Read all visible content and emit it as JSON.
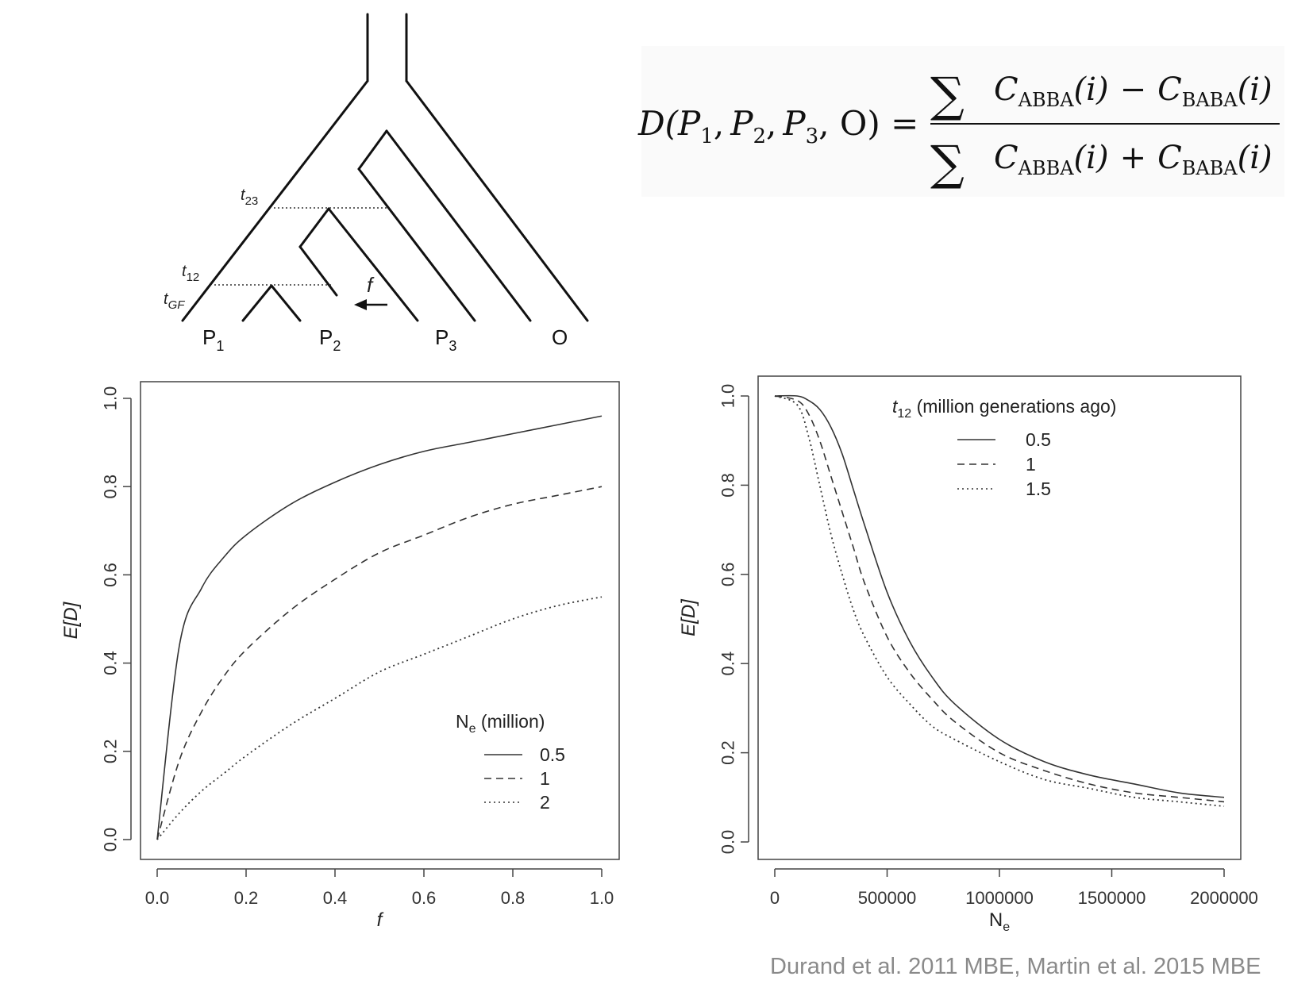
{
  "tree": {
    "tips": [
      "P",
      "P",
      "P",
      "O"
    ],
    "tip_subscripts": [
      "1",
      "2",
      "3",
      ""
    ],
    "times": {
      "t23": "t",
      "t23_sub": "23",
      "t12": "t",
      "t12_sub": "12",
      "tgf": "t",
      "tgf_sub": "GF"
    },
    "flow_label": "f"
  },
  "formula": {
    "lhs": "D(P",
    "lhs_rest": [
      ",",
      "P",
      ",",
      "P",
      ", O) ="
    ],
    "subs": [
      "1",
      "2",
      "3"
    ],
    "sigma": "∑",
    "C": "C",
    "abba": "ABBA",
    "baba": "BABA",
    "arg": "(i)",
    "minus": "−",
    "plus": "+"
  },
  "citation": "Durand et al. 2011 MBE, Martin et al. 2015 MBE",
  "chart_data": [
    {
      "type": "line",
      "xlabel": "f",
      "ylabel": "E[D]",
      "xlim": [
        0,
        1
      ],
      "ylim": [
        0,
        1
      ],
      "xticks": [
        "0.0",
        "0.2",
        "0.4",
        "0.6",
        "0.8",
        "1.0"
      ],
      "yticks": [
        "0.0",
        "0.2",
        "0.4",
        "0.6",
        "0.8",
        "1.0"
      ],
      "legend_title": "N",
      "legend_title_sub": "e",
      "legend_title_rest": " (million)",
      "legend_position": "bottom-right",
      "x": [
        0,
        0.05,
        0.1,
        0.15,
        0.2,
        0.3,
        0.4,
        0.5,
        0.6,
        0.7,
        0.8,
        0.9,
        1.0
      ],
      "series": [
        {
          "name": "0.5",
          "style": "solid",
          "values": [
            0,
            0.44,
            0.57,
            0.64,
            0.69,
            0.76,
            0.81,
            0.85,
            0.88,
            0.9,
            0.92,
            0.94,
            0.96
          ]
        },
        {
          "name": "1",
          "style": "dashed",
          "values": [
            0,
            0.18,
            0.29,
            0.37,
            0.43,
            0.52,
            0.59,
            0.65,
            0.69,
            0.73,
            0.76,
            0.78,
            0.8
          ]
        },
        {
          "name": "2",
          "style": "dotted",
          "values": [
            0,
            0.06,
            0.11,
            0.15,
            0.19,
            0.26,
            0.32,
            0.38,
            0.42,
            0.46,
            0.5,
            0.53,
            0.55
          ]
        }
      ]
    },
    {
      "type": "line",
      "xlabel": "N",
      "xlabel_sub": "e",
      "ylabel": "E[D]",
      "xlim": [
        0,
        2000000
      ],
      "ylim": [
        0,
        1
      ],
      "xticks": [
        "0",
        "500000",
        "1000000",
        "1500000",
        "2000000"
      ],
      "yticks": [
        "0.0",
        "0.2",
        "0.4",
        "0.6",
        "0.8",
        "1.0"
      ],
      "legend_title": "t",
      "legend_title_sub": "12",
      "legend_title_rest": " (million generations ago)",
      "legend_position": "top-right",
      "x": [
        0,
        100000,
        150000,
        200000,
        250000,
        300000,
        350000,
        400000,
        500000,
        600000,
        700000,
        800000,
        1000000,
        1200000,
        1400000,
        1600000,
        1800000,
        2000000
      ],
      "series": [
        {
          "name": "0.5",
          "style": "solid",
          "values": [
            1.0,
            1.0,
            0.99,
            0.97,
            0.93,
            0.87,
            0.79,
            0.71,
            0.56,
            0.45,
            0.37,
            0.31,
            0.23,
            0.18,
            0.15,
            0.13,
            0.11,
            0.1
          ]
        },
        {
          "name": "1",
          "style": "dashed",
          "values": [
            1.0,
            0.99,
            0.96,
            0.9,
            0.82,
            0.74,
            0.66,
            0.58,
            0.46,
            0.38,
            0.32,
            0.27,
            0.2,
            0.16,
            0.13,
            0.11,
            0.1,
            0.09
          ]
        },
        {
          "name": "1.5",
          "style": "dotted",
          "values": [
            1.0,
            0.98,
            0.91,
            0.8,
            0.69,
            0.6,
            0.52,
            0.46,
            0.37,
            0.31,
            0.26,
            0.23,
            0.18,
            0.14,
            0.12,
            0.1,
            0.09,
            0.08
          ]
        }
      ]
    }
  ]
}
